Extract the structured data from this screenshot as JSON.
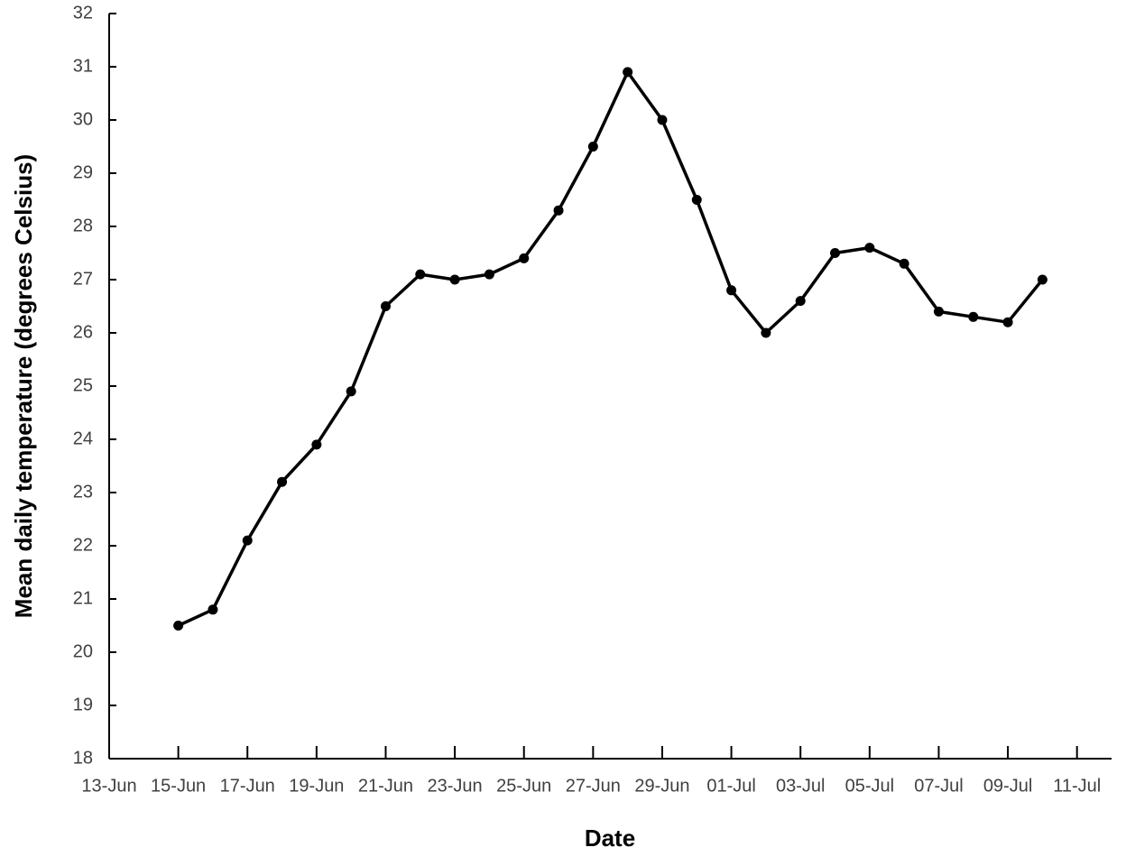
{
  "chart_data": {
    "type": "line",
    "x_label": "Date",
    "y_label": "Mean daily temperature (degrees Celsius)",
    "x": [
      "15-Jun",
      "16-Jun",
      "17-Jun",
      "18-Jun",
      "19-Jun",
      "20-Jun",
      "21-Jun",
      "22-Jun",
      "23-Jun",
      "24-Jun",
      "25-Jun",
      "26-Jun",
      "27-Jun",
      "28-Jun",
      "29-Jun",
      "30-Jun",
      "01-Jul",
      "02-Jul",
      "03-Jul",
      "04-Jul",
      "05-Jul",
      "06-Jul",
      "07-Jul",
      "08-Jul",
      "09-Jul",
      "10-Jul"
    ],
    "values": [
      20.5,
      20.8,
      22.1,
      23.2,
      23.9,
      24.9,
      26.5,
      27.1,
      27.0,
      27.1,
      27.4,
      28.3,
      29.5,
      30.9,
      30.0,
      28.5,
      26.8,
      26.0,
      26.6,
      27.5,
      27.6,
      27.3,
      26.4,
      26.3,
      26.2,
      27.0
    ],
    "color": "#000000",
    "xlim": [
      "13-Jun",
      "12-Jul"
    ],
    "xticks": [
      "13-Jun",
      "15-Jun",
      "17-Jun",
      "19-Jun",
      "21-Jun",
      "23-Jun",
      "25-Jun",
      "27-Jun",
      "29-Jun",
      "01-Jul",
      "03-Jul",
      "05-Jul",
      "07-Jul",
      "09-Jul",
      "11-Jul"
    ],
    "ylim": [
      18,
      32
    ],
    "yticks": [
      18,
      19,
      20,
      21,
      22,
      23,
      24,
      25,
      26,
      27,
      28,
      29,
      30,
      31,
      32
    ],
    "grid": false
  }
}
